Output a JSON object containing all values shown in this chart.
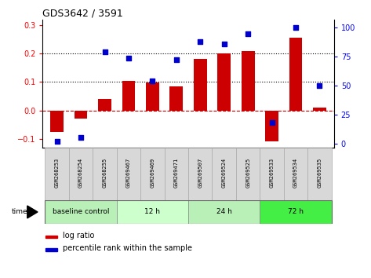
{
  "title": "GDS3642 / 3591",
  "samples": [
    "GSM268253",
    "GSM268254",
    "GSM268255",
    "GSM269467",
    "GSM269469",
    "GSM269471",
    "GSM269507",
    "GSM269524",
    "GSM269525",
    "GSM269533",
    "GSM269534",
    "GSM269535"
  ],
  "log_ratio": [
    -0.075,
    -0.03,
    0.04,
    0.105,
    0.098,
    0.085,
    0.18,
    0.2,
    0.21,
    -0.11,
    0.255,
    0.01
  ],
  "percentile_rank": [
    2,
    5,
    79,
    74,
    54,
    72,
    88,
    86,
    95,
    18,
    100,
    50
  ],
  "groups": [
    {
      "label": "baseline control",
      "start": 0,
      "end": 3,
      "color": "#b8f0b8"
    },
    {
      "label": "12 h",
      "start": 3,
      "end": 6,
      "color": "#ccffcc"
    },
    {
      "label": "24 h",
      "start": 6,
      "end": 9,
      "color": "#b8f0b8"
    },
    {
      "label": "72 h",
      "start": 9,
      "end": 12,
      "color": "#44ee44"
    }
  ],
  "bar_color": "#cc0000",
  "dot_color": "#0000cc",
  "ylim_left": [
    -0.13,
    0.32
  ],
  "ylim_right": [
    -3.25,
    107
  ],
  "yticks_left": [
    -0.1,
    0.0,
    0.1,
    0.2,
    0.3
  ],
  "yticks_right": [
    0,
    25,
    50,
    75,
    100
  ],
  "zero_line_color": "#cc0000",
  "dotted_line_color": "black",
  "dotted_lines": [
    0.1,
    0.2
  ],
  "bar_width": 0.55,
  "plot_bg": "#ffffff",
  "label_bg": "#d8d8d8",
  "label_edge": "#aaaaaa"
}
